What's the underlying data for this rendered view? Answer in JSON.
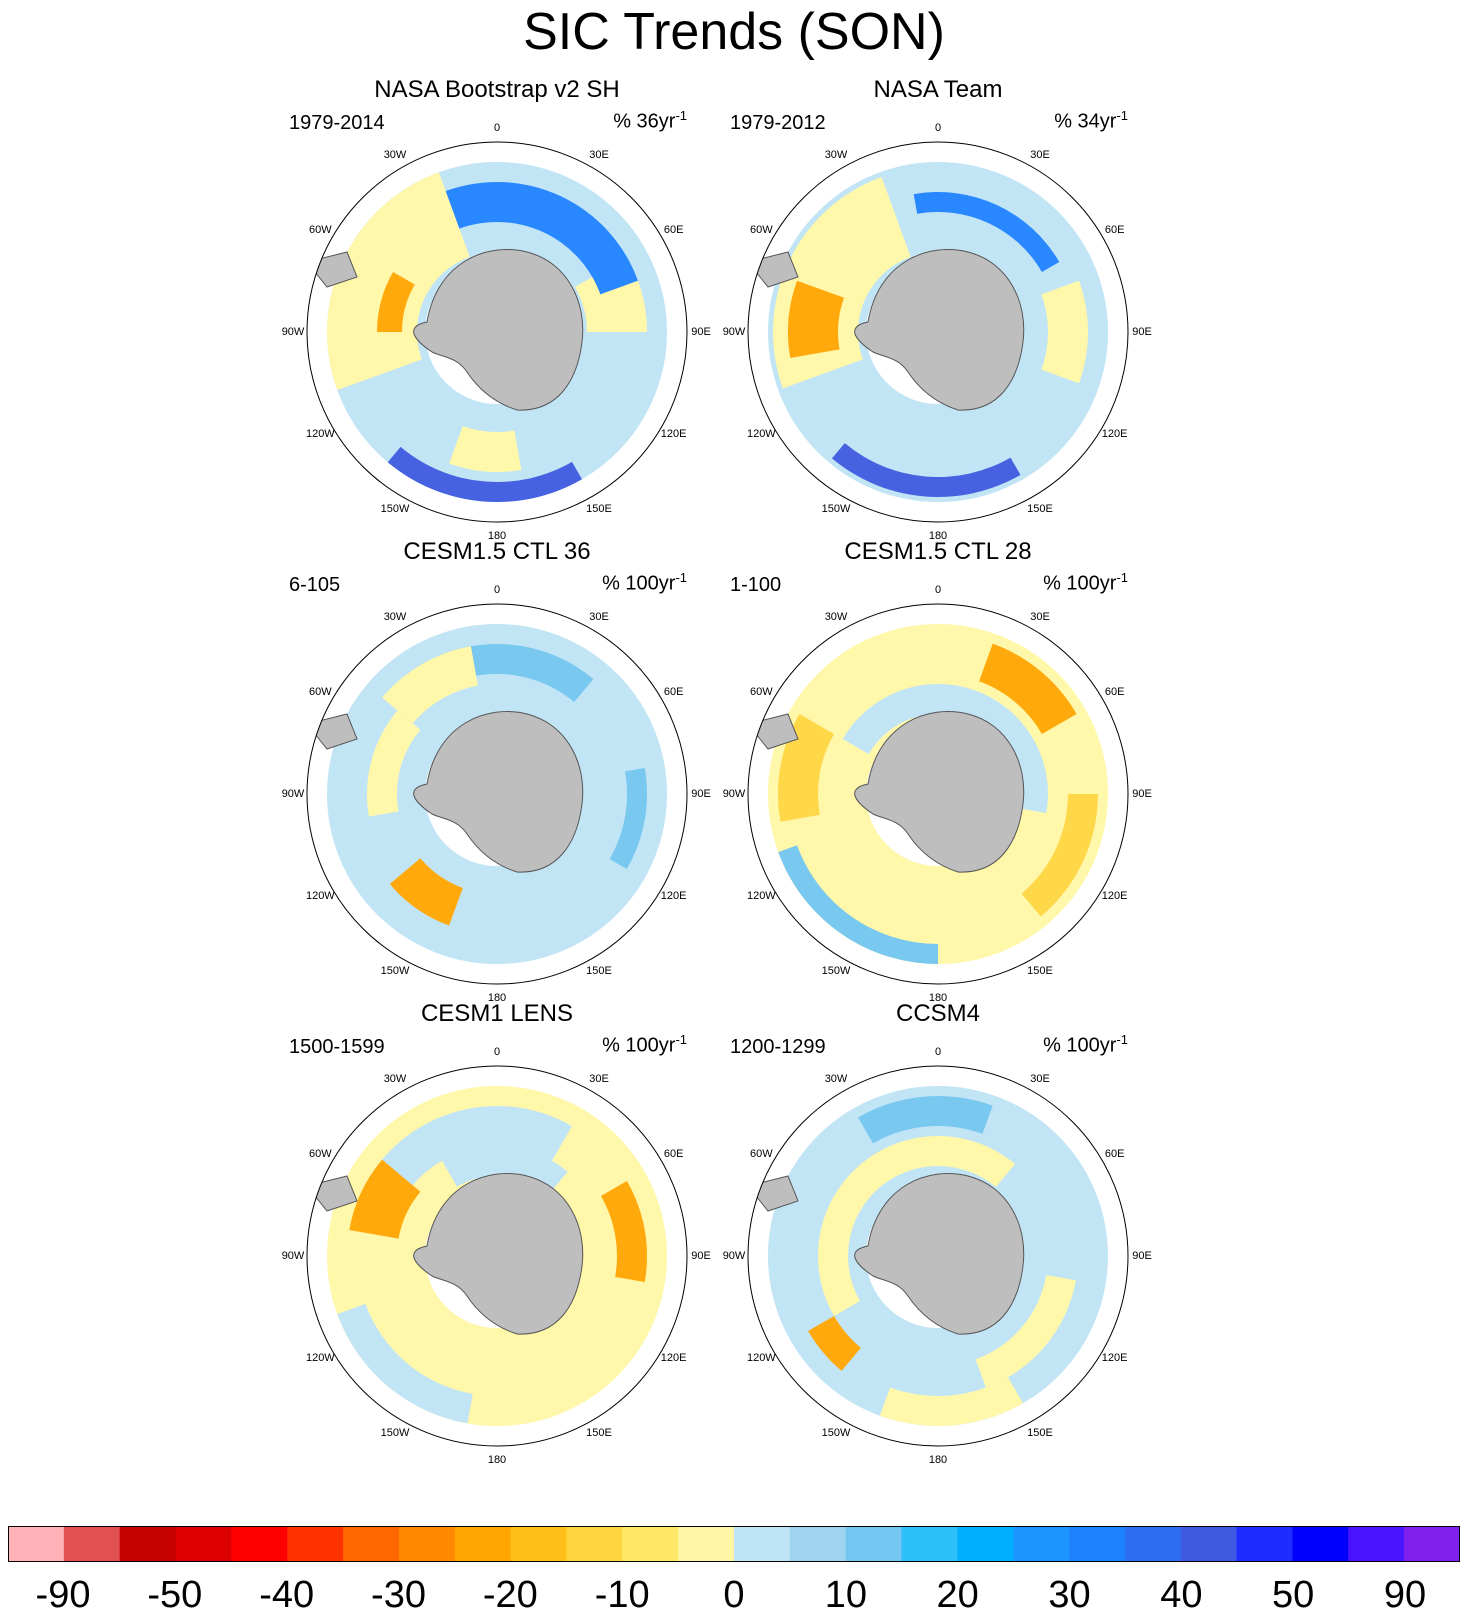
{
  "title": "SIC Trends (SON)",
  "longitude_labels": [
    "0",
    "30E",
    "60E",
    "90E",
    "120E",
    "150E",
    "180",
    "150W",
    "120W",
    "90W",
    "60W",
    "30W"
  ],
  "panels": [
    {
      "title": "NASA Bootstrap v2 SH",
      "period": "1979-2014",
      "units_prefix": "% 36yr",
      "units_sup": "-1",
      "pattern": "obs1"
    },
    {
      "title": "NASA Team",
      "period": "1979-2012",
      "units_prefix": "% 34yr",
      "units_sup": "-1",
      "pattern": "obs2"
    },
    {
      "title": "CESM1.5 CTL 36",
      "period": "6-105",
      "units_prefix": "% 100yr",
      "units_sup": "-1",
      "pattern": "ctl36"
    },
    {
      "title": "CESM1.5 CTL 28",
      "period": "1-100",
      "units_prefix": "% 100yr",
      "units_sup": "-1",
      "pattern": "ctl28"
    },
    {
      "title": "CESM1 LENS",
      "period": "1500-1599",
      "units_prefix": "% 100yr",
      "units_sup": "-1",
      "pattern": "lens"
    },
    {
      "title": "CCSM4",
      "period": "1200-1299",
      "units_prefix": "% 100yr",
      "units_sup": "-1",
      "pattern": "ccsm4"
    }
  ],
  "colorbar": {
    "colors": [
      "#ffb3b8",
      "#e35050",
      "#c40000",
      "#dc0000",
      "#ff0000",
      "#ff3300",
      "#ff6600",
      "#ff8800",
      "#ffa500",
      "#ffbf1a",
      "#ffd640",
      "#ffe866",
      "#fff7a6",
      "#bfe4f6",
      "#9ed4ef",
      "#72c6f0",
      "#2ec0f8",
      "#00b0ff",
      "#1c96ff",
      "#1e82ff",
      "#2e6ef0",
      "#3d5ae0",
      "#1e2dff",
      "#0000ff",
      "#4a14ff",
      "#8020ee"
    ],
    "labels": [
      "-90",
      "-50",
      "-40",
      "-30",
      "-20",
      "-10",
      "0",
      "10",
      "20",
      "30",
      "40",
      "50",
      "90"
    ]
  }
}
